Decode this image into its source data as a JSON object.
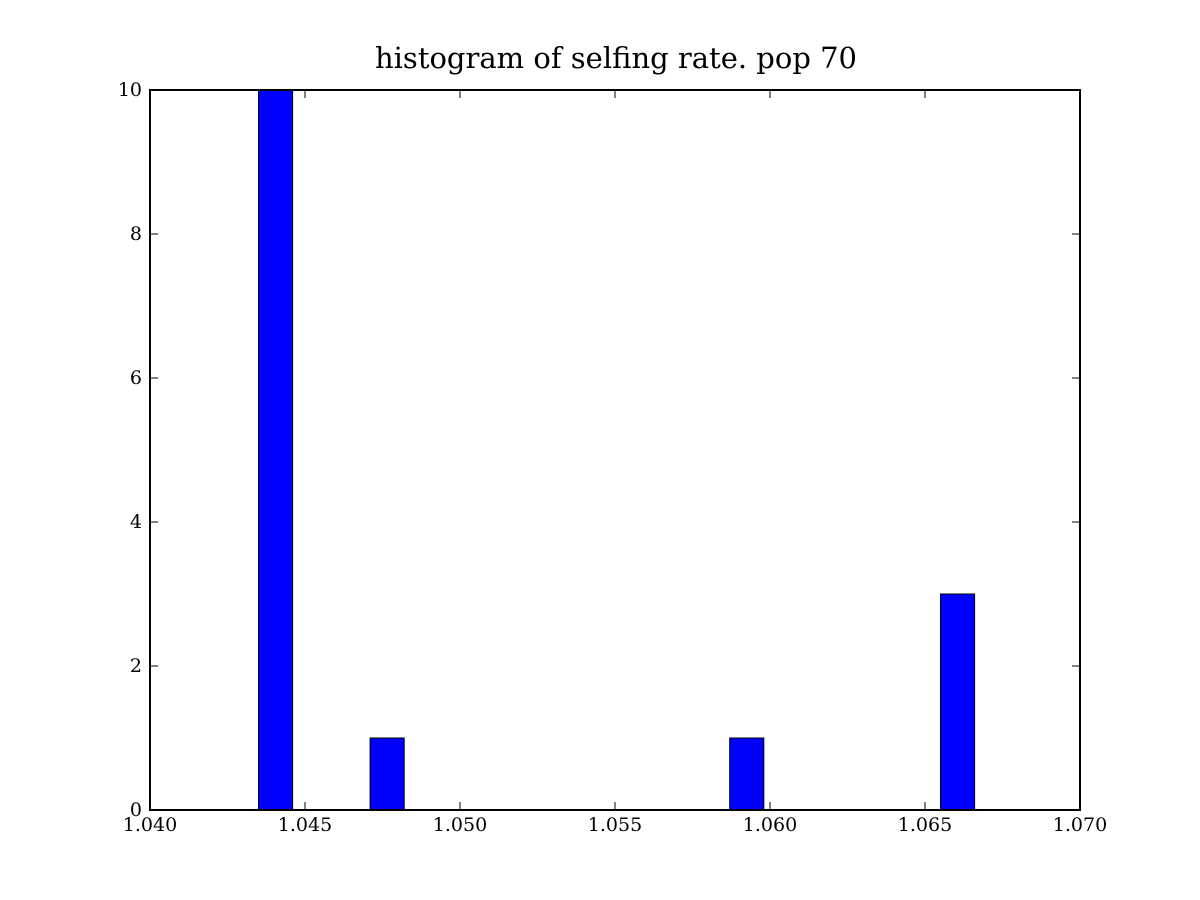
{
  "chart_data": {
    "type": "bar",
    "title": "histogram of selfing rate. pop 70",
    "xlabel": "",
    "ylabel": "",
    "xlim": [
      1.04,
      1.07
    ],
    "ylim": [
      0,
      10
    ],
    "xticks": [
      "1.040",
      "1.045",
      "1.050",
      "1.055",
      "1.060",
      "1.065",
      "1.070"
    ],
    "yticks": [
      "0",
      "2",
      "4",
      "6",
      "8",
      "10"
    ],
    "bars": [
      {
        "x0": 1.0435,
        "x1": 1.0446,
        "value": 10
      },
      {
        "x0": 1.0471,
        "x1": 1.0482,
        "value": 1
      },
      {
        "x0": 1.0587,
        "x1": 1.0598,
        "value": 1
      },
      {
        "x0": 1.0655,
        "x1": 1.0666,
        "value": 3
      }
    ],
    "bar_color": "#0000ff",
    "grid": false,
    "legend": false
  }
}
